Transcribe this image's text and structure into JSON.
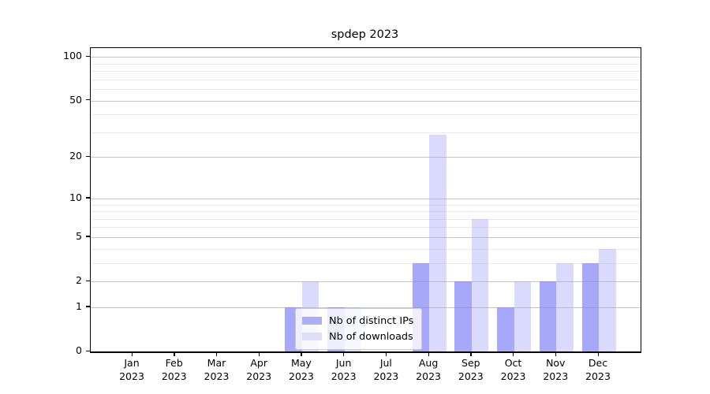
{
  "chart_data": {
    "type": "bar",
    "title": "spdep 2023",
    "categories": [
      "Jan",
      "Feb",
      "Mar",
      "Apr",
      "May",
      "Jun",
      "Jul",
      "Aug",
      "Sep",
      "Oct",
      "Nov",
      "Dec"
    ],
    "year_label": "2023",
    "series": [
      {
        "name": "Nb of distinct IPs",
        "color": "rgba(136,136,250,0.73)",
        "legend_color": "#aeaef2",
        "values": [
          0,
          0,
          0,
          0,
          1,
          1,
          0,
          3,
          2,
          1,
          2,
          3
        ]
      },
      {
        "name": "Nb of downloads",
        "color": "rgba(168,168,250,0.42)",
        "legend_color": "#dedef8",
        "values": [
          0,
          0,
          0,
          0,
          2,
          1,
          0,
          29,
          7,
          2,
          3,
          4
        ]
      }
    ],
    "yscale": "log1p",
    "ylim": [
      0,
      115
    ],
    "yticks": [
      0,
      1,
      2,
      5,
      10,
      20,
      50,
      100
    ],
    "minor_gridline_values": [
      3,
      4,
      6,
      7,
      8,
      9,
      30,
      40,
      60,
      70,
      80,
      90
    ],
    "grid": "horizontal",
    "legend_position": "lower center",
    "colors": {
      "major_grid": "#c5c5c5",
      "minor_grid": "#eaeaea",
      "spine": "#000000",
      "background": "#ffffff"
    }
  }
}
